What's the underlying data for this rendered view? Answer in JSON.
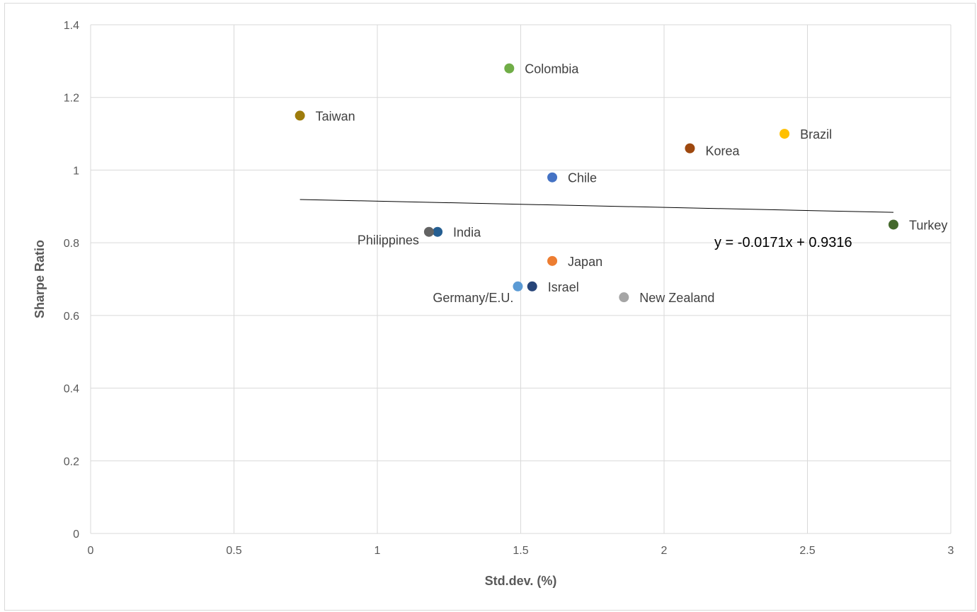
{
  "chart_data": {
    "type": "scatter",
    "title": "",
    "xlabel": "Std.dev. (%)",
    "ylabel": "Sharpe Ratio",
    "xlim": [
      0,
      3
    ],
    "ylim": [
      0,
      1.4
    ],
    "x_ticks": [
      "0",
      "0.5",
      "1",
      "1.5",
      "2",
      "2.5",
      "3"
    ],
    "y_ticks": [
      "0",
      "0.2",
      "0.4",
      "0.6",
      "0.8",
      "1",
      "1.2",
      "1.4"
    ],
    "grid": true,
    "legend": "none",
    "points": [
      {
        "label": "Colombia",
        "x": 1.46,
        "y": 1.28,
        "color": "#70ad47"
      },
      {
        "label": "Taiwan",
        "x": 0.73,
        "y": 1.15,
        "color": "#9e7c0c"
      },
      {
        "label": "Brazil",
        "x": 2.42,
        "y": 1.1,
        "color": "#ffc000"
      },
      {
        "label": "Korea",
        "x": 2.09,
        "y": 1.06,
        "color": "#9e480e"
      },
      {
        "label": "Chile",
        "x": 1.61,
        "y": 0.98,
        "color": "#4472c4"
      },
      {
        "label": "Turkey",
        "x": 2.8,
        "y": 0.85,
        "color": "#43682b"
      },
      {
        "label": "India",
        "x": 1.21,
        "y": 0.83,
        "color": "#255e91"
      },
      {
        "label": "Philippines",
        "x": 1.18,
        "y": 0.83,
        "color": "#636363"
      },
      {
        "label": "Japan",
        "x": 1.61,
        "y": 0.75,
        "color": "#ed7d31"
      },
      {
        "label": "Germany/E.U.",
        "x": 1.49,
        "y": 0.68,
        "color": "#5b9bd5"
      },
      {
        "label": "Israel",
        "x": 1.54,
        "y": 0.68,
        "color": "#264478"
      },
      {
        "label": "New Zealand",
        "x": 1.86,
        "y": 0.65,
        "color": "#a5a5a5"
      }
    ],
    "trendline": {
      "equation": "y = -0.0171x + 0.9316",
      "slope": -0.0171,
      "intercept": 0.9316,
      "x_range": [
        0.73,
        2.8
      ]
    }
  }
}
